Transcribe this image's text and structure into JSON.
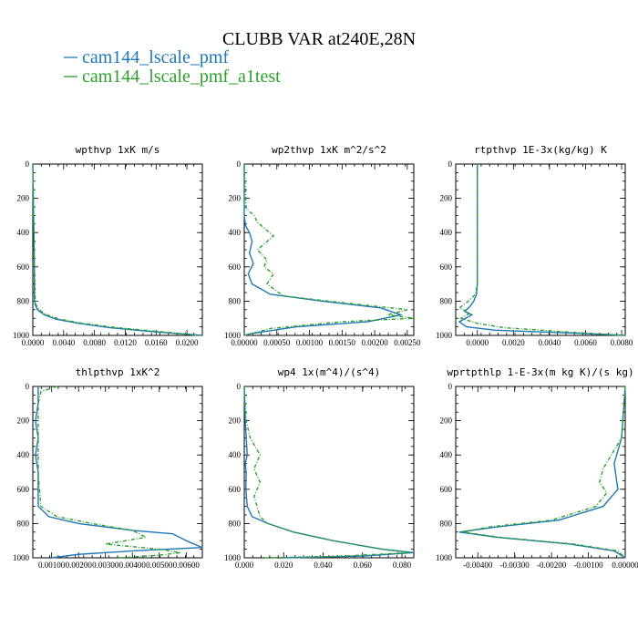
{
  "title": "CLUBB VAR at240E,28N",
  "legend": [
    {
      "label": "cam144_lscale_pmf",
      "color": "#1f77b4"
    },
    {
      "label": "cam144_lscale_pmf_a1test",
      "color": "#2ca02c"
    }
  ],
  "chart_data": [
    {
      "type": "line",
      "title": "wpthvp  1xK m/s",
      "xlim": [
        0,
        0.022
      ],
      "ylim": [
        0,
        1000
      ],
      "y_inverted": true,
      "xticks": [
        "0.0000",
        "0.0040",
        "0.0080",
        "0.0120",
        "0.0160",
        "0.0200"
      ],
      "xtick_values": [
        0,
        0.004,
        0.008,
        0.012,
        0.016,
        0.02
      ],
      "yticks": [
        "0",
        "200",
        "400",
        "600",
        "800",
        "1000"
      ],
      "ytick_values": [
        0,
        200,
        400,
        600,
        800,
        1000
      ],
      "series": [
        {
          "color": "#1f77b4",
          "dashed": false,
          "x": [
            0,
            0.0001,
            0.0002,
            0.0002,
            0.0003,
            0.0006,
            0.0015,
            0.003,
            0.006,
            0.01,
            0.016,
            0.022
          ],
          "y": [
            0,
            300,
            600,
            780,
            820,
            850,
            880,
            905,
            930,
            955,
            980,
            1000
          ]
        },
        {
          "color": "#2ca02c",
          "dashed": true,
          "x": [
            0,
            0.0001,
            0.0002,
            0.0003,
            0.0004,
            0.0008,
            0.0018,
            0.0035,
            0.0065,
            0.011,
            0.017,
            0.0215
          ],
          "y": [
            0,
            300,
            600,
            780,
            820,
            850,
            880,
            905,
            930,
            955,
            980,
            1000
          ]
        }
      ]
    },
    {
      "type": "line",
      "title": "wp2thvp  1xK m^2/s^2",
      "xlim": [
        0,
        0.0026
      ],
      "ylim": [
        0,
        1000
      ],
      "y_inverted": true,
      "xticks": [
        "0.00000",
        "0.00050",
        "0.00100",
        "0.00150",
        "0.00200",
        "0.00250"
      ],
      "xtick_values": [
        0,
        0.0005,
        0.001,
        0.0015,
        0.002,
        0.0025
      ],
      "yticks": [
        "0",
        "200",
        "400",
        "600",
        "800",
        "1000"
      ],
      "ytick_values": [
        0,
        200,
        400,
        600,
        800,
        1000
      ],
      "series": [
        {
          "color": "#1f77b4",
          "dashed": false,
          "x": [
            0,
            0,
            2e-05,
            8e-05,
            0.00012,
            8e-05,
            0.00014,
            6e-05,
            0.00012,
            0.0004,
            0.0012,
            0.0021,
            0.0024,
            0.0019,
            0.0008,
            0.0001,
            0
          ],
          "y": [
            0,
            300,
            360,
            400,
            450,
            520,
            580,
            640,
            700,
            760,
            800,
            840,
            880,
            920,
            950,
            990,
            1000
          ]
        },
        {
          "color": "#2ca02c",
          "dashed": true,
          "x": [
            0,
            3e-05,
            0.00015,
            0.0002,
            0.00045,
            0.0002,
            0.00035,
            0.0003,
            0.00045,
            0.00035,
            0.0006,
            0.0013,
            0.0025,
            0.0022,
            0.0026,
            0.0015,
            0.0004,
            0
          ],
          "y": [
            0,
            260,
            300,
            340,
            420,
            500,
            560,
            600,
            640,
            700,
            770,
            800,
            850,
            880,
            900,
            920,
            960,
            1000
          ]
        }
      ]
    },
    {
      "type": "line",
      "title": "rtpthvp  1E-3x(kg/kg) K",
      "xlim": [
        -0.0012,
        0.0082
      ],
      "ylim": [
        0,
        1000
      ],
      "y_inverted": true,
      "xticks": [
        "0.0000",
        "0.0020",
        "0.0040",
        "0.0060",
        "0.0080"
      ],
      "xtick_values": [
        0,
        0.002,
        0.004,
        0.006,
        0.008
      ],
      "yticks": [
        "0",
        "200",
        "400",
        "600",
        "800",
        "1000"
      ],
      "ytick_values": [
        0,
        200,
        400,
        600,
        800,
        1000
      ],
      "series": [
        {
          "color": "#1f77b4",
          "dashed": false,
          "x": [
            0,
            0,
            -5e-05,
            -0.0002,
            -0.0004,
            -0.0007,
            -0.0003,
            -0.001,
            -0.0006,
            0.001,
            0.005,
            0.0082
          ],
          "y": [
            0,
            700,
            760,
            800,
            830,
            860,
            880,
            920,
            950,
            970,
            985,
            1000
          ]
        },
        {
          "color": "#2ca02c",
          "dashed": true,
          "x": [
            0,
            0,
            -0.0001,
            -0.0005,
            -0.001,
            -0.0004,
            -0.0009,
            0,
            0.0015,
            0.005,
            0.0082
          ],
          "y": [
            0,
            700,
            760,
            800,
            840,
            870,
            900,
            930,
            955,
            980,
            1000
          ]
        }
      ]
    },
    {
      "type": "line",
      "title": "thlpthvp  1xK^2",
      "xlim": [
        0.0003,
        0.0066
      ],
      "ylim": [
        0,
        1000
      ],
      "y_inverted": true,
      "xticks": [
        "0.00100",
        "0.00200",
        "0.00300",
        "0.00400",
        "0.00500",
        "0.00600"
      ],
      "xtick_values": [
        0.001,
        0.002,
        0.003,
        0.004,
        0.005,
        0.006
      ],
      "yticks": [
        "0",
        "200",
        "400",
        "600",
        "800",
        "1000"
      ],
      "ytick_values": [
        0,
        200,
        400,
        600,
        800,
        1000
      ],
      "series": [
        {
          "color": "#1f77b4",
          "dashed": false,
          "x": [
            0.0005,
            0.0005,
            0.0004,
            0.0005,
            0.0004,
            0.0005,
            0.0005,
            0.0009,
            0.002,
            0.004,
            0.0055,
            0.006,
            0.0066,
            0.004,
            0.002,
            0.001
          ],
          "y": [
            0,
            100,
            200,
            300,
            400,
            500,
            700,
            760,
            800,
            840,
            860,
            900,
            940,
            960,
            980,
            1000
          ]
        },
        {
          "color": "#2ca02c",
          "dashed": true,
          "x": [
            0.0012,
            0.0006,
            0.0005,
            0.0005,
            0.0005,
            0.0006,
            0.0012,
            0.0025,
            0.004,
            0.0045,
            0.003,
            0.005,
            0.0058,
            0.005,
            0.0035
          ],
          "y": [
            0,
            30,
            100,
            300,
            500,
            700,
            760,
            800,
            840,
            880,
            920,
            950,
            970,
            985,
            1000
          ]
        }
      ]
    },
    {
      "type": "line",
      "title": "wp4  1x(m^4)/(s^4)",
      "xlim": [
        0,
        0.086
      ],
      "ylim": [
        0,
        1000
      ],
      "y_inverted": true,
      "xticks": [
        "0.000",
        "0.020",
        "0.040",
        "0.060",
        "0.080"
      ],
      "xtick_values": [
        0,
        0.02,
        0.04,
        0.06,
        0.08
      ],
      "yticks": [
        "0",
        "200",
        "400",
        "600",
        "800",
        "1000"
      ],
      "ytick_values": [
        0,
        200,
        400,
        600,
        800,
        1000
      ],
      "series": [
        {
          "color": "#1f77b4",
          "dashed": false,
          "x": [
            0,
            0.0005,
            0.001,
            0.0015,
            0.0005,
            0.001,
            0.0008,
            0.0015,
            0.004,
            0.012,
            0.025,
            0.045,
            0.07,
            0.086,
            0.06,
            0.02
          ],
          "y": [
            0,
            200,
            300,
            400,
            450,
            500,
            600,
            700,
            760,
            800,
            850,
            900,
            950,
            970,
            990,
            1000
          ]
        },
        {
          "color": "#2ca02c",
          "dashed": true,
          "x": [
            0,
            0.001,
            0.003,
            0.008,
            0.005,
            0.008,
            0.005,
            0.008,
            0.012,
            0.025,
            0.045,
            0.07,
            0.084,
            0.05,
            0.01
          ],
          "y": [
            0,
            200,
            300,
            400,
            480,
            560,
            640,
            760,
            800,
            850,
            900,
            950,
            970,
            990,
            1000
          ]
        }
      ]
    },
    {
      "type": "line",
      "title": "wprtpthlp  1-E-3x(m kg K)/(s kg)",
      "xlim": [
        -0.0046,
        0.0
      ],
      "ylim": [
        0,
        1000
      ],
      "y_inverted": true,
      "xticks": [
        "-0.00400",
        "-0.00300",
        "-0.00200",
        "-0.00100",
        "0.00000"
      ],
      "xtick_values": [
        -0.004,
        -0.003,
        -0.002,
        -0.001,
        0.0
      ],
      "yticks": [
        "0",
        "200",
        "400",
        "600",
        "800",
        "1000"
      ],
      "ytick_values": [
        0,
        200,
        400,
        600,
        800,
        1000
      ],
      "series": [
        {
          "color": "#1f77b4",
          "dashed": false,
          "x": [
            0,
            -0.0001,
            -0.0003,
            -0.0002,
            -0.0006,
            -0.0018,
            -0.0035,
            -0.0045,
            -0.0035,
            -0.0015,
            -0.0003,
            0
          ],
          "y": [
            0,
            300,
            450,
            600,
            700,
            780,
            820,
            850,
            880,
            920,
            960,
            1000
          ]
        },
        {
          "color": "#2ca02c",
          "dashed": true,
          "x": [
            0,
            -0.0001,
            -0.0006,
            -0.0007,
            -0.0005,
            -0.0008,
            -0.002,
            -0.0037,
            -0.0044,
            -0.0034,
            -0.0014,
            -0.0002,
            0
          ],
          "y": [
            0,
            300,
            480,
            560,
            620,
            700,
            780,
            820,
            850,
            880,
            920,
            960,
            1000
          ]
        }
      ]
    }
  ]
}
